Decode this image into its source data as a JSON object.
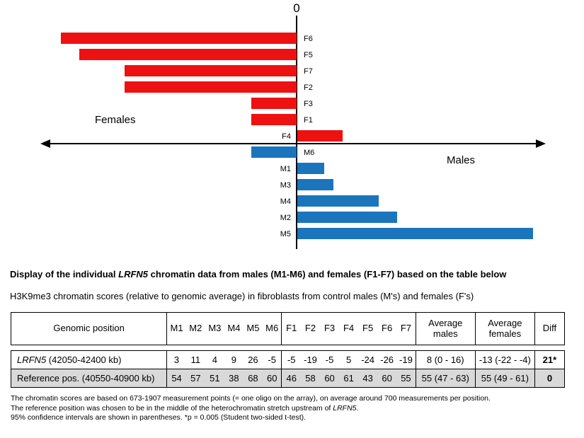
{
  "colors": {
    "female_bar": "#ee1111",
    "male_bar": "#1b75bc",
    "axis": "#000000",
    "shaded_row_bg": "#d9d9d9"
  },
  "chart_data": {
    "type": "bar",
    "orientation": "horizontal-diverging",
    "zero_label": "0",
    "left_group_label": "Females",
    "right_group_label": "Males",
    "axis_range": [
      -28,
      28
    ],
    "bars": [
      {
        "label": "F6",
        "value": -26,
        "group": "female"
      },
      {
        "label": "F5",
        "value": -24,
        "group": "female"
      },
      {
        "label": "F7",
        "value": -19,
        "group": "female"
      },
      {
        "label": "F2",
        "value": -19,
        "group": "female"
      },
      {
        "label": "F3",
        "value": -5,
        "group": "female"
      },
      {
        "label": "F1",
        "value": -5,
        "group": "female"
      },
      {
        "label": "F4",
        "value": 5,
        "group": "female"
      },
      {
        "label": "M6",
        "value": -5,
        "group": "male"
      },
      {
        "label": "M1",
        "value": 3,
        "group": "male"
      },
      {
        "label": "M3",
        "value": 4,
        "group": "male"
      },
      {
        "label": "M4",
        "value": 9,
        "group": "male"
      },
      {
        "label": "M2",
        "value": 11,
        "group": "male"
      },
      {
        "label": "M5",
        "value": 26,
        "group": "male"
      }
    ]
  },
  "caption": {
    "title_pre": "Display of the individual ",
    "title_italic": "LRFN5",
    "title_post": " chromatin data from males (M1-M6) and females (F1-F7) based on the table below",
    "subtitle": "H3K9me3 chromatin scores (relative to genomic average) in fibroblasts from control males (M's) and females (F's)"
  },
  "table": {
    "headers": [
      "Genomic position",
      "M1",
      "M2",
      "M3",
      "M4",
      "M5",
      "M6",
      "F1",
      "F2",
      "F3",
      "F4",
      "F5",
      "F6",
      "F7",
      "Average males",
      "Average females",
      "Diff"
    ],
    "group_separator_after": [
      0,
      6,
      13,
      14,
      15
    ],
    "rows": [
      {
        "label_italic": "LRFN5",
        "label_rest": " (42050-42400 kb)",
        "cells": [
          "3",
          "11",
          "4",
          "9",
          "26",
          "-5",
          "-5",
          "-19",
          "-5",
          "5",
          "-24",
          "-26",
          "-19",
          "8 (0 - 16)",
          "-13 (-22 - -4)",
          "21*"
        ],
        "shaded": false
      },
      {
        "label_italic": "",
        "label_rest": "Reference pos. (40550-40900 kb)",
        "cells": [
          "54",
          "57",
          "51",
          "38",
          "68",
          "60",
          "46",
          "58",
          "60",
          "61",
          "43",
          "60",
          "55",
          "55 (47 - 63)",
          "55 (49 - 61)",
          "0"
        ],
        "shaded": true
      }
    ]
  },
  "footnotes": [
    {
      "pre": "The chromatin scores are based on 673-1907 measurement points (= one oligo on the array), on average around 700 measurements per position.",
      "italic": "",
      "post": ""
    },
    {
      "pre": "The reference position was chosen to be in the middle of the heterochromatin stretch upstream of ",
      "italic": "LRFN5",
      "post": "."
    },
    {
      "pre": "95% confidence intervals are shown in parentheses. *p = 0.005 (Student two-sided t-test).",
      "italic": "",
      "post": ""
    }
  ]
}
